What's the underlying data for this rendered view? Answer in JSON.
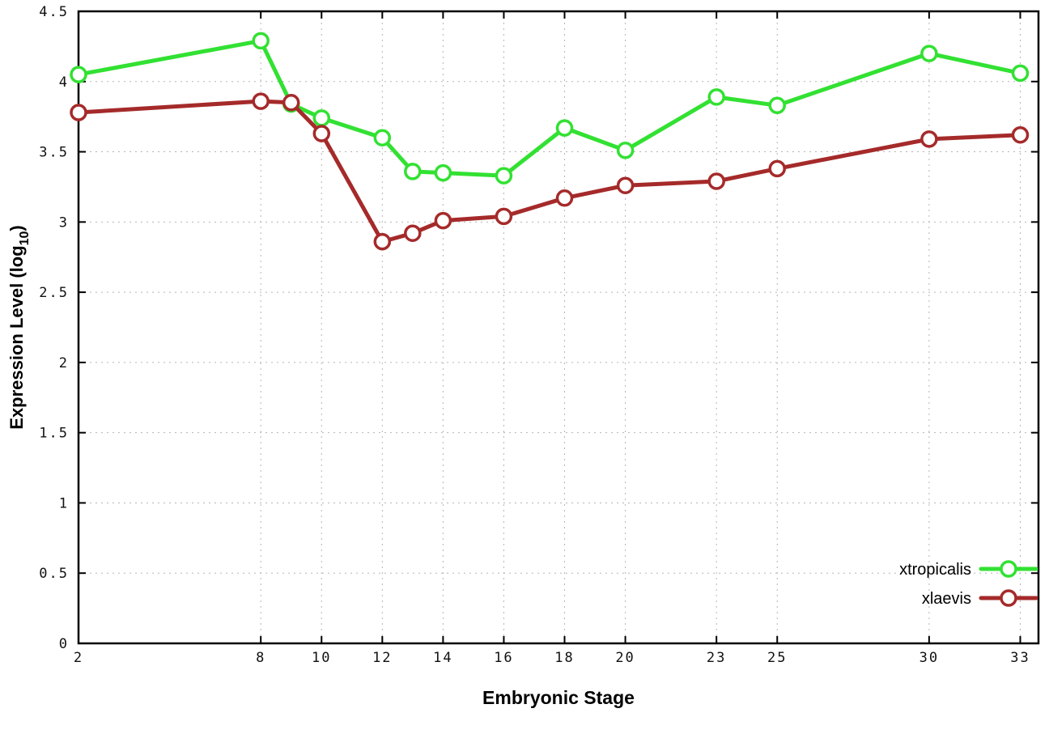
{
  "chart_data": {
    "type": "line",
    "title": "",
    "xlabel": "Embryonic Stage",
    "ylabel": {
      "prefix": "Expression Level (log",
      "sub": "10",
      "suffix": ")"
    },
    "x": [
      2,
      8,
      9,
      10,
      12,
      13,
      14,
      16,
      18,
      20,
      23,
      25,
      30,
      33
    ],
    "x_tick_values": [
      2,
      8,
      10,
      12,
      14,
      16,
      18,
      20,
      23,
      25,
      30,
      33
    ],
    "x_tick_labels": [
      "2",
      "8",
      "10",
      "12",
      "14",
      "16",
      "18",
      "20",
      "23",
      "25",
      "30",
      "33"
    ],
    "y_tick_values": [
      0,
      0.5,
      1,
      1.5,
      2,
      2.5,
      3,
      3.5,
      4,
      4.5
    ],
    "y_tick_labels": [
      "0",
      "0.5",
      "1",
      "1.5",
      "2",
      "2.5",
      "3",
      "3.5",
      "4",
      "4.5"
    ],
    "xlim": [
      2,
      33.6
    ],
    "ylim": [
      0,
      4.5
    ],
    "grid": true,
    "legend_position": "bottom-right",
    "series": [
      {
        "name": "xtropicalis",
        "color": "#32e132",
        "values": [
          4.05,
          4.29,
          3.84,
          3.74,
          3.6,
          3.36,
          3.35,
          3.33,
          3.67,
          3.51,
          3.89,
          3.83,
          4.2,
          4.06
        ]
      },
      {
        "name": "xlaevis",
        "color": "#a52a2a",
        "values": [
          3.78,
          3.86,
          3.85,
          3.63,
          2.86,
          2.92,
          3.01,
          3.04,
          3.17,
          3.26,
          3.29,
          3.38,
          3.59,
          3.62
        ]
      }
    ],
    "style": {
      "grid_color": "#b5b5b5",
      "border_color": "#000000",
      "tick_label_color": "#111111",
      "axis_label_color": "#000000",
      "background": "#ffffff"
    }
  }
}
